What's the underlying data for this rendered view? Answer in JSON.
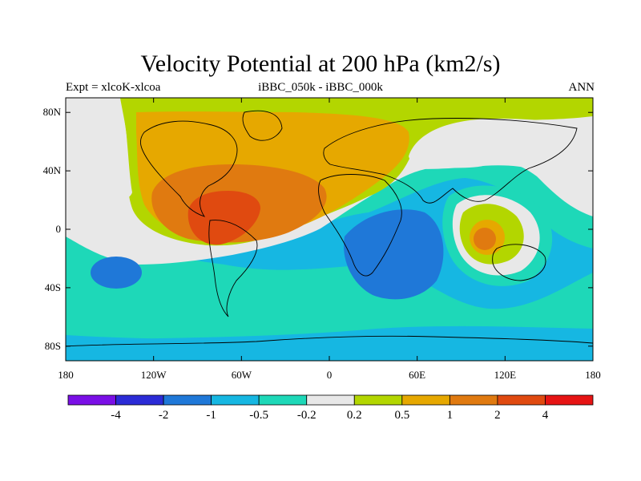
{
  "header": {
    "title": "Velocity Potential at 200 hPa (km2/s)",
    "left_label": "Expt = xlcoK-xlcoa",
    "center_label": "iBBC_050k - iBBC_000k",
    "right_label": "ANN"
  },
  "axes": {
    "x_ticks": [
      {
        "lon": -180,
        "label": "180"
      },
      {
        "lon": -120,
        "label": "120W"
      },
      {
        "lon": -60,
        "label": "60W"
      },
      {
        "lon": 0,
        "label": "0"
      },
      {
        "lon": 60,
        "label": "60E"
      },
      {
        "lon": 120,
        "label": "120E"
      },
      {
        "lon": 180,
        "label": "180"
      }
    ],
    "y_ticks": [
      {
        "lat": 80,
        "label": "80N"
      },
      {
        "lat": 40,
        "label": "40N"
      },
      {
        "lat": 0,
        "label": "0"
      },
      {
        "lat": -40,
        "label": "40S"
      },
      {
        "lat": -80,
        "label": "80S"
      }
    ],
    "lon_range": [
      -180,
      180
    ],
    "lat_range": [
      -90,
      90
    ]
  },
  "legend": {
    "colors": [
      "#7a0fe6",
      "#2b2bd6",
      "#1f78d8",
      "#16b7e2",
      "#1ed8b8",
      "#e8e8e8",
      "#b3d600",
      "#e6a800",
      "#e07a10",
      "#e04a10",
      "#e61414"
    ],
    "labels": [
      "-4",
      "-2",
      "-1",
      "-0.5",
      "-0.2",
      "0.2",
      "0.5",
      "1",
      "2",
      "4"
    ]
  },
  "chart_data": {
    "type": "filled-contour-map",
    "title": "Velocity Potential at 200 hPa (km2/s)",
    "variable": "Velocity Potential at 200 hPa",
    "units": "km2/s",
    "experiment": "xlcoK-xlcoa",
    "comparison": "iBBC_050k - iBBC_000k",
    "season": "ANN",
    "contour_levels": [
      -4,
      -2,
      -1,
      -0.5,
      -0.2,
      0.2,
      0.5,
      1,
      2,
      4
    ],
    "features": [
      {
        "name": "Americas-Atlantic maximum",
        "lon": -80,
        "lat": 10,
        "level": 2
      },
      {
        "name": "Maritime Continent maximum",
        "lon": 105,
        "lat": -5,
        "level": 1
      },
      {
        "name": "Africa-Indian Ocean minimum",
        "lon": 40,
        "lat": -15,
        "level": -1
      },
      {
        "name": "South Pacific minimum",
        "lon": -145,
        "lat": -30,
        "level": -1
      }
    ]
  }
}
